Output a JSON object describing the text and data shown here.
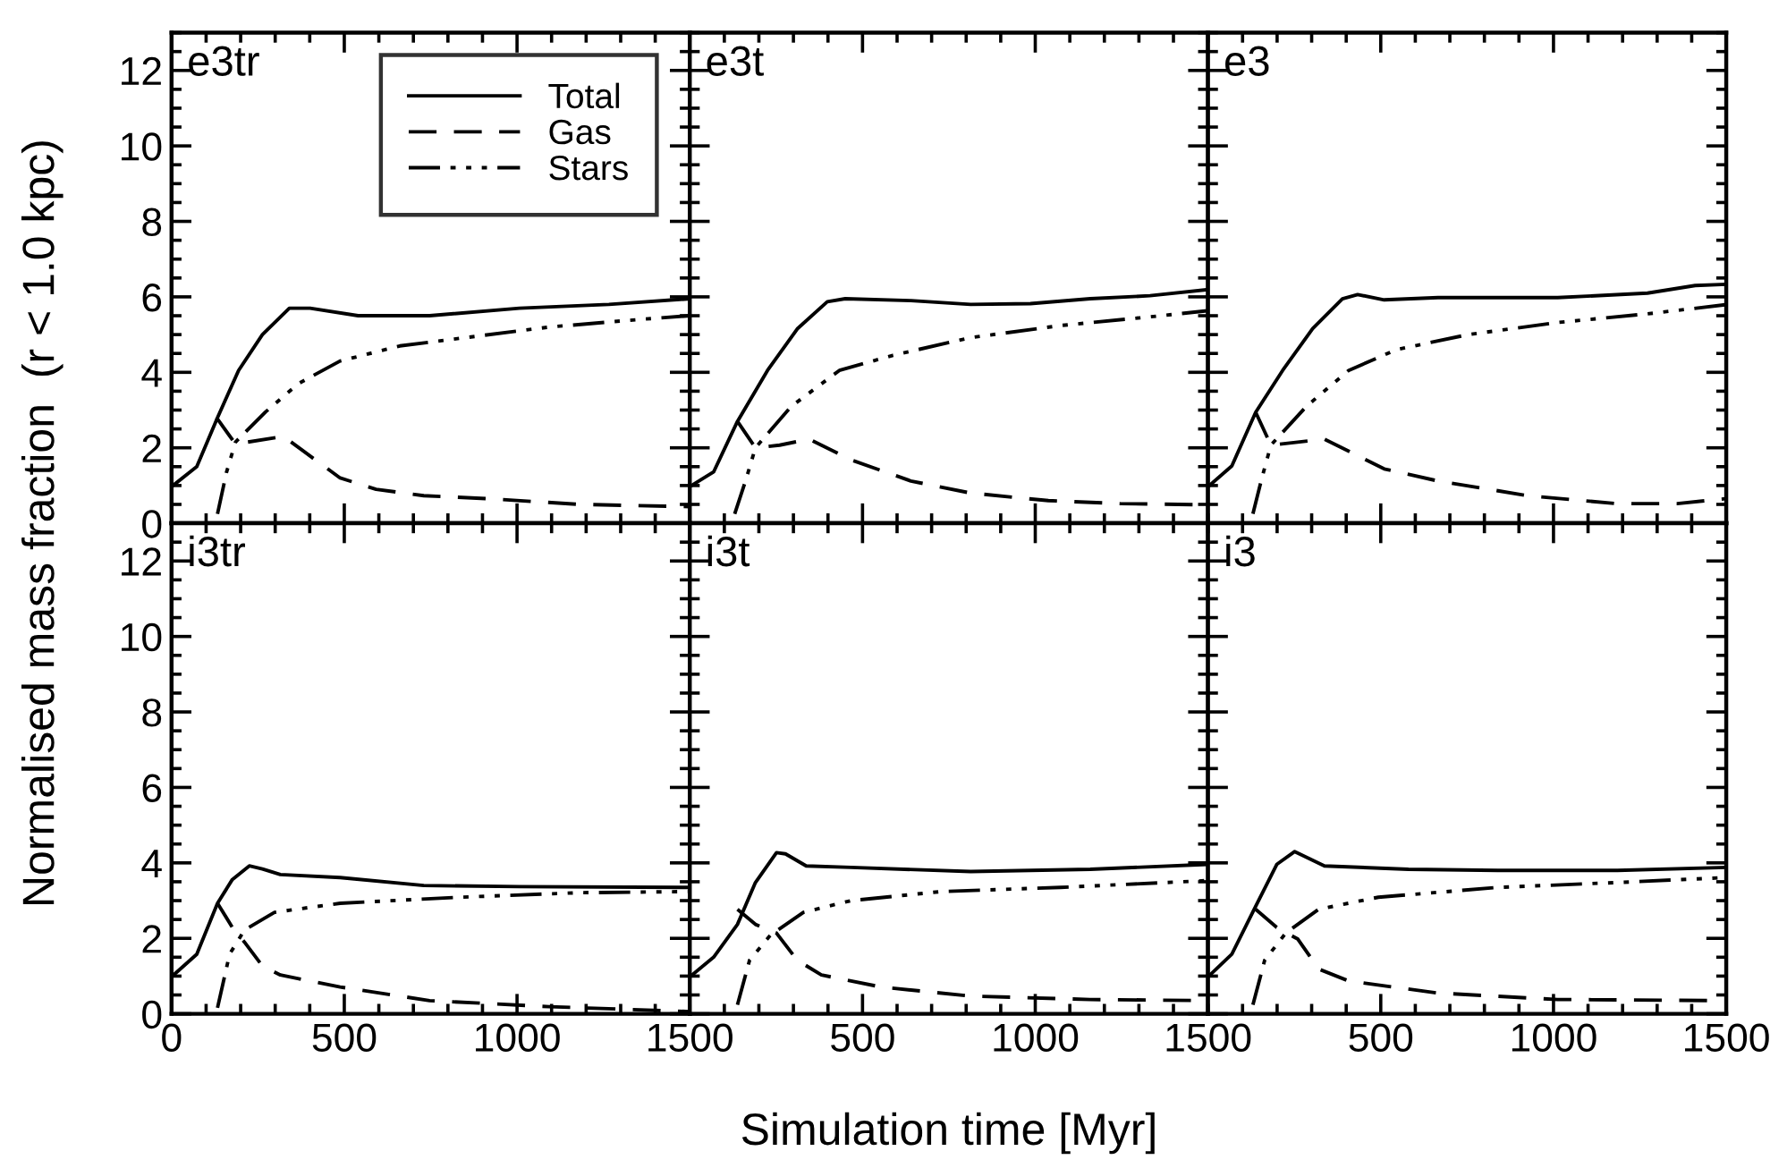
{
  "chart_data": [
    {
      "type": "line",
      "title": "e3tr",
      "ylabel": "Normalised mass fraction  (r < 1.0 kpc)",
      "xlim": [
        0,
        1500
      ],
      "ylim": [
        0,
        13
      ],
      "xticks": [
        0,
        500,
        1000,
        1500
      ],
      "yticks": [
        0,
        2,
        4,
        6,
        8,
        10,
        12
      ],
      "tick_labels": "y",
      "legend": "top right",
      "series": [
        {
          "name": "Total",
          "color": "#000000",
          "line_style": "solid",
          "x": [
            0,
            73,
            133,
            194,
            263,
            341,
            401,
            540,
            747,
            1007,
            1266,
            1500
          ],
          "values": [
            0.97,
            1.5,
            2.8,
            4.05,
            5.0,
            5.7,
            5.7,
            5.5,
            5.5,
            5.7,
            5.8,
            5.95
          ]
        },
        {
          "name": "Gas",
          "color": "#000000",
          "line_style": "dashed",
          "x": [
            130,
            185,
            324,
            488,
            592,
            730,
            920,
            1180,
            1500
          ],
          "values": [
            2.8,
            2.1,
            2.3,
            1.2,
            0.9,
            0.73,
            0.65,
            0.5,
            0.44
          ]
        },
        {
          "name": "Stars",
          "color": "#000000",
          "line_style": "dashdotdot",
          "x": [
            133,
            159,
            185,
            272,
            367,
            488,
            661,
            834,
            1093,
            1353,
            1500
          ],
          "values": [
            0.25,
            1.35,
            2.15,
            2.95,
            3.7,
            4.3,
            4.7,
            4.9,
            5.2,
            5.4,
            5.5
          ]
        }
      ]
    },
    {
      "type": "line",
      "title": "e3t",
      "xlim": [
        0,
        1500
      ],
      "ylim": [
        0,
        13
      ],
      "xticks": [
        500,
        1000,
        1500
      ],
      "yticks": [
        0,
        2,
        4,
        6,
        8,
        10,
        12
      ],
      "tick_labels": false,
      "series": [
        {
          "color": "#000000",
          "line_style": "solid",
          "x": [
            0,
            69,
            138,
            225,
            311,
            398,
            450,
            640,
            813,
            986,
            1159,
            1332,
            1497
          ],
          "values": [
            0.97,
            1.36,
            2.7,
            4.05,
            5.15,
            5.87,
            5.95,
            5.9,
            5.8,
            5.82,
            5.95,
            6.03,
            6.19
          ]
        },
        {
          "color": "#000000",
          "line_style": "dashed",
          "x": [
            138,
            190,
            260,
            346,
            467,
            640,
            813,
            1038,
            1246,
            1497
          ],
          "values": [
            2.7,
            2.0,
            2.07,
            2.23,
            1.68,
            1.12,
            0.8,
            0.6,
            0.52,
            0.49
          ]
        },
        {
          "color": "#000000",
          "line_style": "dashdotdot",
          "x": [
            130,
            164,
            190,
            294,
            433,
            588,
            813,
            1073,
            1332,
            1497
          ],
          "values": [
            0.25,
            1.2,
            2.0,
            3.1,
            4.05,
            4.45,
            4.92,
            5.24,
            5.47,
            5.63
          ]
        }
      ]
    },
    {
      "type": "line",
      "title": "e3",
      "xlim": [
        0,
        1500
      ],
      "ylim": [
        0,
        13
      ],
      "xticks": [
        500,
        1000,
        1500
      ],
      "yticks": [
        0,
        2,
        4,
        6,
        8,
        10,
        12
      ],
      "tick_labels": false,
      "series": [
        {
          "color": "#000000",
          "line_style": "solid",
          "x": [
            0,
            69,
            138,
            216,
            303,
            389,
            433,
            510,
            666,
            1012,
            1272,
            1410,
            1497
          ],
          "values": [
            0.97,
            1.52,
            2.94,
            4.05,
            5.16,
            5.95,
            6.06,
            5.92,
            5.98,
            5.98,
            6.1,
            6.3,
            6.33
          ]
        },
        {
          "color": "#000000",
          "line_style": "dashed",
          "x": [
            138,
            182,
            337,
            510,
            666,
            926,
            1185,
            1358,
            1497
          ],
          "values": [
            2.94,
            2.07,
            2.23,
            1.44,
            1.12,
            0.73,
            0.52,
            0.52,
            0.65
          ]
        },
        {
          "color": "#000000",
          "line_style": "dashdotdot",
          "x": [
            130,
            156,
            182,
            285,
            407,
            545,
            753,
            1012,
            1272,
            1497
          ],
          "values": [
            0.25,
            1.2,
            2.07,
            3.1,
            4.05,
            4.6,
            5.0,
            5.32,
            5.55,
            5.79
          ]
        }
      ]
    },
    {
      "type": "line",
      "title": "i3tr",
      "xlim": [
        0,
        1500
      ],
      "ylim": [
        0,
        13
      ],
      "xticks": [
        0,
        500,
        1000,
        1500
      ],
      "yticks": [
        0,
        2,
        4,
        6,
        8,
        10,
        12
      ],
      "series": [
        {
          "color": "#000000",
          "line_style": "solid",
          "x": [
            0,
            73,
            133,
            176,
            225,
            263,
            315,
            488,
            730,
            1007,
            1500
          ],
          "values": [
            0.98,
            1.58,
            2.93,
            3.56,
            3.92,
            3.84,
            3.69,
            3.61,
            3.4,
            3.37,
            3.35
          ]
        },
        {
          "color": "#000000",
          "line_style": "dashed",
          "x": [
            133,
            176,
            211,
            263,
            315,
            488,
            747,
            1093,
            1500
          ],
          "values": [
            2.93,
            2.29,
            1.9,
            1.27,
            1.03,
            0.71,
            0.35,
            0.19,
            0.06
          ]
        },
        {
          "color": "#000000",
          "line_style": "dashdotdot",
          "x": [
            133,
            168,
            211,
            298,
            488,
            834,
            1180,
            1500
          ],
          "values": [
            0.16,
            1.58,
            2.22,
            2.69,
            2.93,
            3.09,
            3.21,
            3.24
          ]
        }
      ]
    },
    {
      "type": "line",
      "title": "i3t",
      "xlabel": "Simulation time [Myr]",
      "xlim": [
        0,
        1500
      ],
      "ylim": [
        0,
        13
      ],
      "xticks": [
        500,
        1000,
        1500
      ],
      "yticks": [
        0,
        2,
        4,
        6,
        8,
        10,
        12
      ],
      "tick_labels": "x",
      "series": [
        {
          "color": "#000000",
          "line_style": "solid",
          "x": [
            0,
            69,
            138,
            190,
            251,
            277,
            337,
            467,
            813,
            1159,
            1497
          ],
          "values": [
            0.98,
            1.5,
            2.37,
            3.48,
            4.27,
            4.24,
            3.92,
            3.88,
            3.77,
            3.83,
            3.96
          ]
        },
        {
          "color": "#000000",
          "line_style": "dashed",
          "x": [
            138,
            190,
            251,
            311,
            381,
            554,
            813,
            1159,
            1497
          ],
          "values": [
            2.77,
            2.37,
            2.14,
            1.42,
            1.03,
            0.71,
            0.47,
            0.38,
            0.35
          ]
        },
        {
          "color": "#000000",
          "line_style": "dashdotdot",
          "x": [
            138,
            173,
            234,
            329,
            467,
            727,
            1073,
            1497
          ],
          "values": [
            0.24,
            1.42,
            2.09,
            2.69,
            3.0,
            3.24,
            3.35,
            3.53
          ]
        }
      ]
    },
    {
      "type": "line",
      "title": "i3",
      "xlim": [
        0,
        1500
      ],
      "ylim": [
        0,
        13
      ],
      "xticks": [
        500,
        1000,
        1500
      ],
      "yticks": [
        0,
        2,
        4,
        6,
        8,
        10,
        12
      ],
      "tick_labels": "x",
      "series": [
        {
          "color": "#000000",
          "line_style": "solid",
          "x": [
            0,
            69,
            138,
            199,
            251,
            294,
            337,
            580,
            839,
            1185,
            1497
          ],
          "values": [
            0.98,
            1.58,
            2.85,
            3.96,
            4.3,
            4.11,
            3.92,
            3.83,
            3.8,
            3.8,
            3.88
          ]
        },
        {
          "color": "#000000",
          "line_style": "dashed",
          "x": [
            138,
            199,
            260,
            320,
            407,
            666,
            1012,
            1497
          ],
          "values": [
            2.77,
            2.29,
            1.98,
            1.19,
            0.87,
            0.55,
            0.38,
            0.35
          ]
        },
        {
          "color": "#000000",
          "line_style": "dashdotdot",
          "x": [
            130,
            164,
            225,
            320,
            493,
            839,
            1185,
            1497
          ],
          "values": [
            0.24,
            1.42,
            2.14,
            2.77,
            3.09,
            3.35,
            3.48,
            3.61
          ]
        }
      ]
    }
  ]
}
